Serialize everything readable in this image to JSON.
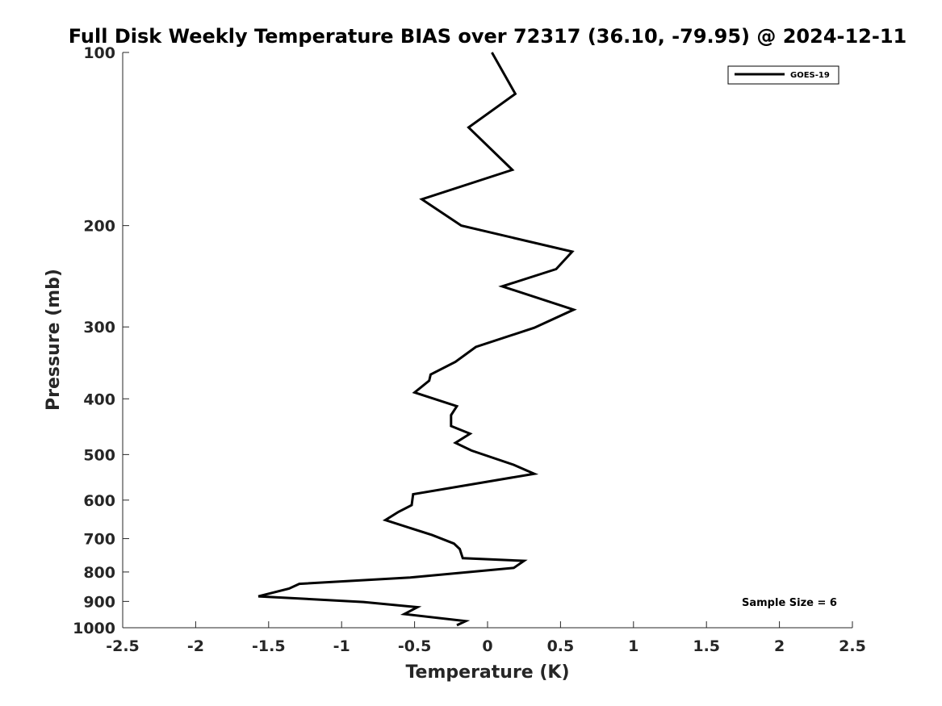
{
  "chart_data": {
    "type": "line",
    "title": "Full Disk Weekly Temperature BIAS over 72317 (36.10, -79.95) @ 2024-12-11",
    "xlabel": "Temperature (K)",
    "ylabel": "Pressure (mb)",
    "xlim": [
      -2.5,
      2.5
    ],
    "ylim": [
      1000,
      100
    ],
    "y_scale": "log",
    "y_reversed": true,
    "grid": false,
    "x_ticks": [
      -2.5,
      -2,
      -1.5,
      -1,
      -0.5,
      0,
      0.5,
      1,
      1.5,
      2,
      2.5
    ],
    "x_tick_labels": [
      "-2.5",
      "-2",
      "-1.5",
      "-1",
      "-0.5",
      "0",
      "0.5",
      "1",
      "1.5",
      "2",
      "2.5"
    ],
    "y_ticks": [
      100,
      200,
      300,
      400,
      500,
      600,
      700,
      800,
      900,
      1000
    ],
    "y_tick_labels": [
      "100",
      "200",
      "300",
      "400",
      "500",
      "600",
      "700",
      "800",
      "900",
      "1000"
    ],
    "legend_position": "top-right",
    "series": [
      {
        "name": "GOES-19",
        "color": "#000000",
        "x": [
          0.03,
          0.19,
          -0.13,
          0.17,
          -0.45,
          -0.18,
          0.58,
          0.47,
          0.1,
          0.59,
          0.32,
          -0.08,
          -0.22,
          -0.39,
          -0.4,
          -0.5,
          -0.21,
          -0.25,
          -0.25,
          -0.12,
          -0.22,
          -0.11,
          0.18,
          0.32,
          -0.05,
          -0.51,
          -0.52,
          -0.61,
          -0.7,
          -0.38,
          -0.23,
          -0.19,
          -0.17,
          0.25,
          0.18,
          -0.53,
          -1.29,
          -1.36,
          -1.57,
          -0.85,
          -0.48,
          -0.57,
          -0.15,
          -0.21
        ],
        "y": [
          100,
          118,
          135,
          160,
          180,
          200,
          222,
          238,
          255,
          280,
          301,
          325,
          345,
          363,
          372,
          390,
          412,
          427,
          446,
          460,
          477,
          492,
          521,
          540,
          560,
          586,
          612,
          629,
          650,
          690,
          714,
          730,
          757,
          765,
          787,
          818,
          839,
          855,
          882,
          902,
          921,
          947,
          974,
          990
        ]
      }
    ],
    "annotations": [
      "Sample Size = 6"
    ]
  }
}
